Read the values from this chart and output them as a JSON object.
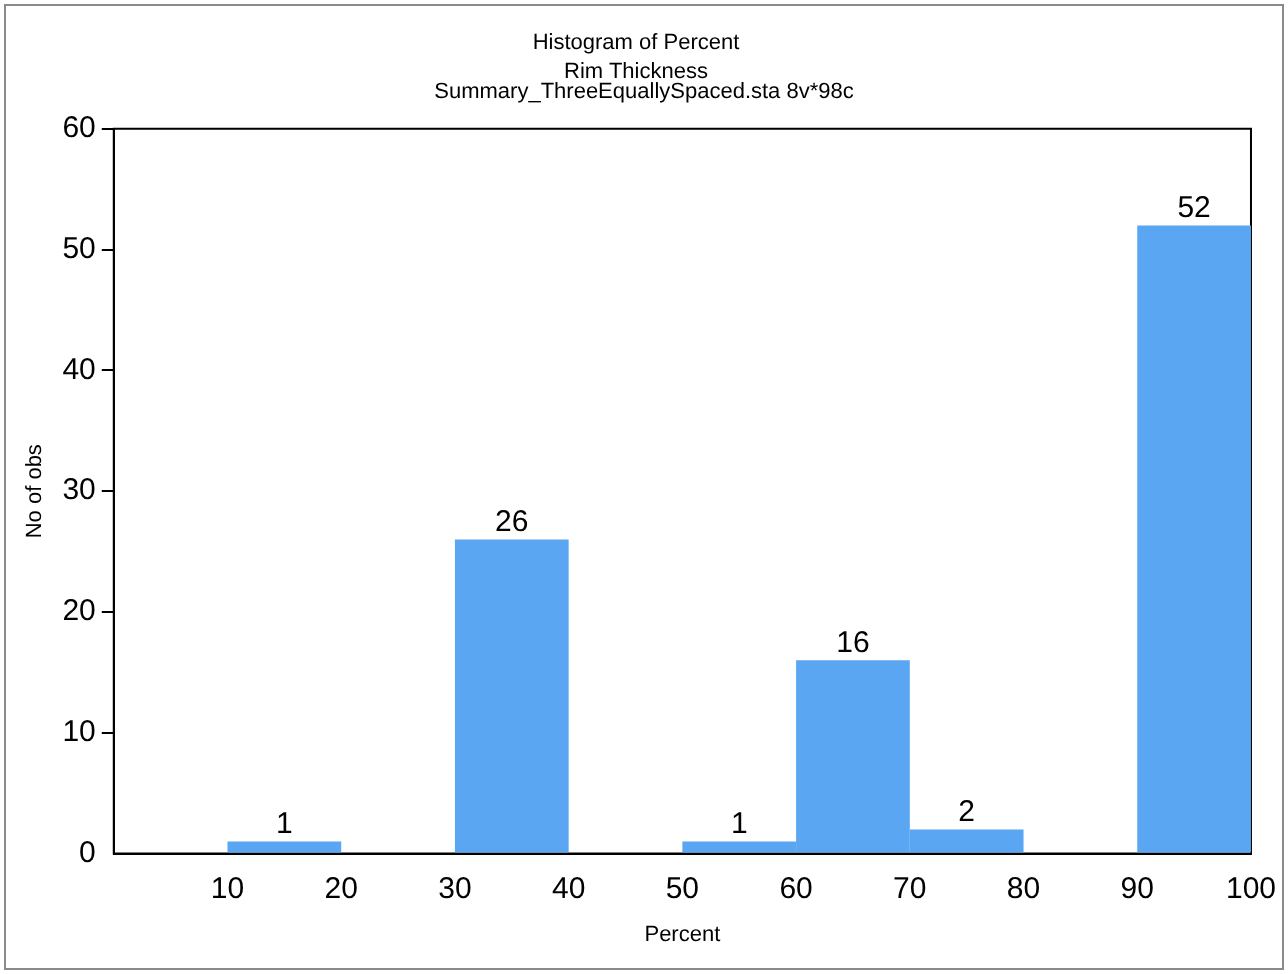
{
  "chart_data": {
    "type": "histogram",
    "title": "Histogram of Percent",
    "subtitle": "Rim Thickness",
    "annotations": [
      "Summary_ThreeEquallySpaced.sta 8v*98c"
    ],
    "xlabel": "Percent",
    "ylabel": "No of obs",
    "bins": [
      10,
      20,
      30,
      40,
      50,
      60,
      70,
      80,
      90,
      100
    ],
    "values": [
      1,
      0,
      26,
      0,
      1,
      16,
      2,
      0,
      52
    ],
    "value_labels": [
      "1",
      null,
      "26",
      null,
      "1",
      "16",
      "2",
      null,
      "52"
    ],
    "color": "#5aa6f2",
    "xlim": [
      0,
      100
    ],
    "xticks": [
      10,
      20,
      30,
      40,
      50,
      60,
      70,
      80,
      90,
      100
    ],
    "ylim": [
      0,
      60
    ],
    "yticks": [
      0,
      10,
      20,
      30,
      40,
      50,
      60
    ],
    "grid": false,
    "legend": false
  }
}
